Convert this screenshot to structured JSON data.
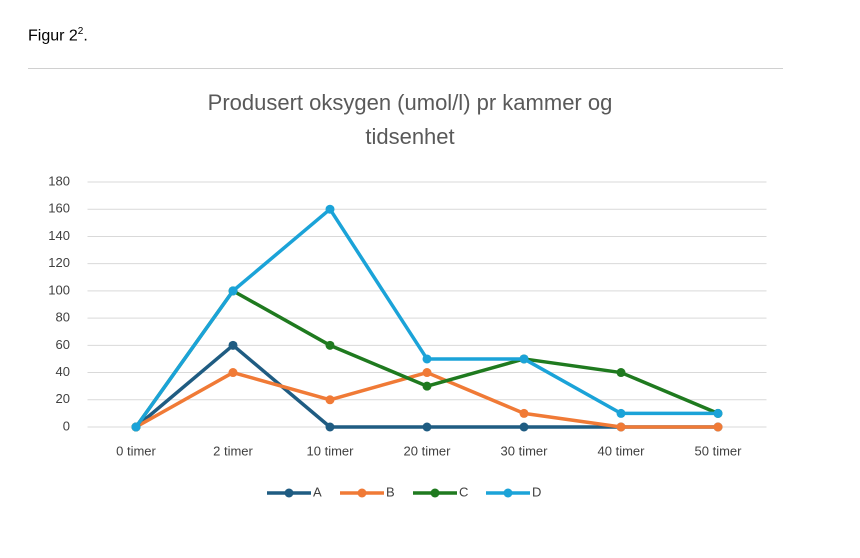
{
  "figure_label": "Figur 2",
  "figure_label_sup": "2",
  "figure_label_end": ".",
  "chart_data": {
    "type": "line",
    "title": "Produsert oksygen (umol/l) pr kammer og tidsenhet",
    "categories": [
      "0 timer",
      "2 timer",
      "10 timer",
      "20 timer",
      "30 timer",
      "40 timer",
      "50 timer"
    ],
    "series": [
      {
        "name": "A",
        "color": "#1f5c82",
        "values": [
          0,
          60,
          0,
          0,
          0,
          0,
          0
        ]
      },
      {
        "name": "B",
        "color": "#f07a36",
        "values": [
          0,
          40,
          20,
          40,
          10,
          0,
          0
        ]
      },
      {
        "name": "C",
        "color": "#1f7a1f",
        "values": [
          0,
          100,
          60,
          30,
          50,
          40,
          10
        ]
      },
      {
        "name": "D",
        "color": "#1ba3d8",
        "values": [
          0,
          100,
          160,
          50,
          50,
          10,
          10
        ]
      }
    ],
    "ylim": [
      0,
      180
    ],
    "yticks": [
      0,
      20,
      40,
      60,
      80,
      100,
      120,
      140,
      160,
      180
    ],
    "grid": true,
    "legend": "bottom"
  }
}
